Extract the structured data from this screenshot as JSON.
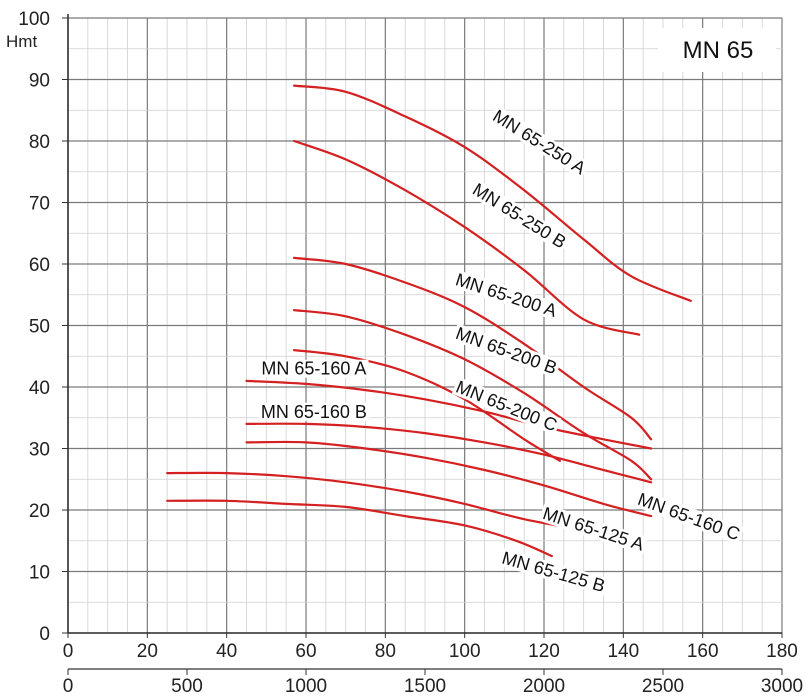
{
  "chart_data": {
    "type": "line",
    "title": "MN 65",
    "ylabel": "Hmt",
    "ylim": [
      0,
      100
    ],
    "y_ticks": [
      0,
      10,
      20,
      30,
      40,
      50,
      60,
      70,
      80,
      90,
      100
    ],
    "x_primary": {
      "lim": [
        0,
        180
      ],
      "ticks": [
        0,
        20,
        40,
        60,
        80,
        100,
        120,
        140,
        160,
        180
      ]
    },
    "x_secondary": {
      "lim": [
        0,
        3000
      ],
      "ticks": [
        0,
        500,
        1000,
        1500,
        2000,
        2500,
        3000
      ]
    },
    "grid": true,
    "line_color": "#d42020",
    "grid_color": "#b0b0b0",
    "series": [
      {
        "name": "MN 65-250 A",
        "points": [
          [
            57,
            89
          ],
          [
            70,
            88
          ],
          [
            85,
            84
          ],
          [
            100,
            79
          ],
          [
            115,
            72
          ],
          [
            130,
            64
          ],
          [
            142,
            58
          ],
          [
            157,
            54
          ]
        ]
      },
      {
        "name": "MN 65-250 B",
        "points": [
          [
            57,
            80
          ],
          [
            70,
            77
          ],
          [
            85,
            72
          ],
          [
            100,
            66
          ],
          [
            115,
            59
          ],
          [
            130,
            51
          ],
          [
            144,
            48.5
          ]
        ]
      },
      {
        "name": "MN 65-200 A",
        "points": [
          [
            57,
            61
          ],
          [
            70,
            60
          ],
          [
            85,
            57
          ],
          [
            100,
            53
          ],
          [
            115,
            47
          ],
          [
            130,
            40
          ],
          [
            142,
            35
          ],
          [
            147,
            31.5
          ]
        ]
      },
      {
        "name": "MN 65-200 B",
        "points": [
          [
            57,
            52.5
          ],
          [
            70,
            51.5
          ],
          [
            85,
            48.5
          ],
          [
            100,
            44.5
          ],
          [
            115,
            39
          ],
          [
            130,
            32.5
          ],
          [
            142,
            28
          ],
          [
            147,
            25
          ]
        ]
      },
      {
        "name": "MN 65-200 C",
        "points": [
          [
            57,
            46
          ],
          [
            70,
            45
          ],
          [
            85,
            42.5
          ],
          [
            100,
            38
          ],
          [
            115,
            31.5
          ],
          [
            124,
            28
          ]
        ]
      },
      {
        "name": "MN 65-160 A",
        "points": [
          [
            45,
            41
          ],
          [
            60,
            40.5
          ],
          [
            75,
            39.5
          ],
          [
            90,
            38
          ],
          [
            105,
            36
          ],
          [
            120,
            33.5
          ],
          [
            135,
            31.5
          ],
          [
            147,
            30
          ]
        ]
      },
      {
        "name": "MN 65-160 B",
        "points": [
          [
            45,
            34
          ],
          [
            60,
            34
          ],
          [
            75,
            33.5
          ],
          [
            90,
            32.5
          ],
          [
            105,
            31
          ],
          [
            120,
            29
          ],
          [
            135,
            26.5
          ],
          [
            147,
            24.5
          ]
        ]
      },
      {
        "name": "MN 65-160 C",
        "points": [
          [
            45,
            31
          ],
          [
            60,
            31
          ],
          [
            75,
            30
          ],
          [
            90,
            28.5
          ],
          [
            105,
            26.5
          ],
          [
            120,
            24
          ],
          [
            135,
            21
          ],
          [
            147,
            19
          ]
        ]
      },
      {
        "name": "MN 65-125 A",
        "points": [
          [
            25,
            26
          ],
          [
            40,
            26
          ],
          [
            55,
            25.5
          ],
          [
            70,
            24.5
          ],
          [
            85,
            23
          ],
          [
            100,
            21
          ],
          [
            115,
            18.5
          ],
          [
            132,
            16.5
          ]
        ]
      },
      {
        "name": "MN 65-125 B",
        "points": [
          [
            25,
            21.5
          ],
          [
            40,
            21.5
          ],
          [
            55,
            21
          ],
          [
            70,
            20.5
          ],
          [
            85,
            19
          ],
          [
            100,
            17.5
          ],
          [
            113,
            15
          ],
          [
            122,
            12.5
          ]
        ]
      }
    ],
    "labels": [
      {
        "text": "MN 65-250 A",
        "x": 118,
        "y": 79,
        "angle": 32
      },
      {
        "text": "MN 65-250 B",
        "x": 113,
        "y": 67,
        "angle": 32
      },
      {
        "text": "MN 65-200 A",
        "x": 110,
        "y": 54,
        "angle": 18
      },
      {
        "text": "MN 65-200 B",
        "x": 110,
        "y": 45,
        "angle": 20
      },
      {
        "text": "MN 65-200 C",
        "x": 110,
        "y": 36,
        "angle": 22
      },
      {
        "text": "MN 65-160 A",
        "x": 62,
        "y": 42,
        "angle": 0
      },
      {
        "text": "MN 65-160 B",
        "x": 62,
        "y": 35,
        "angle": 0
      },
      {
        "text": "MN 65-160 C",
        "x": 156,
        "y": 18,
        "angle": 20
      },
      {
        "text": "MN 65-125 A",
        "x": 132,
        "y": 16,
        "angle": 18
      },
      {
        "text": "MN 65-125 B",
        "x": 122,
        "y": 9,
        "angle": 16
      }
    ]
  }
}
